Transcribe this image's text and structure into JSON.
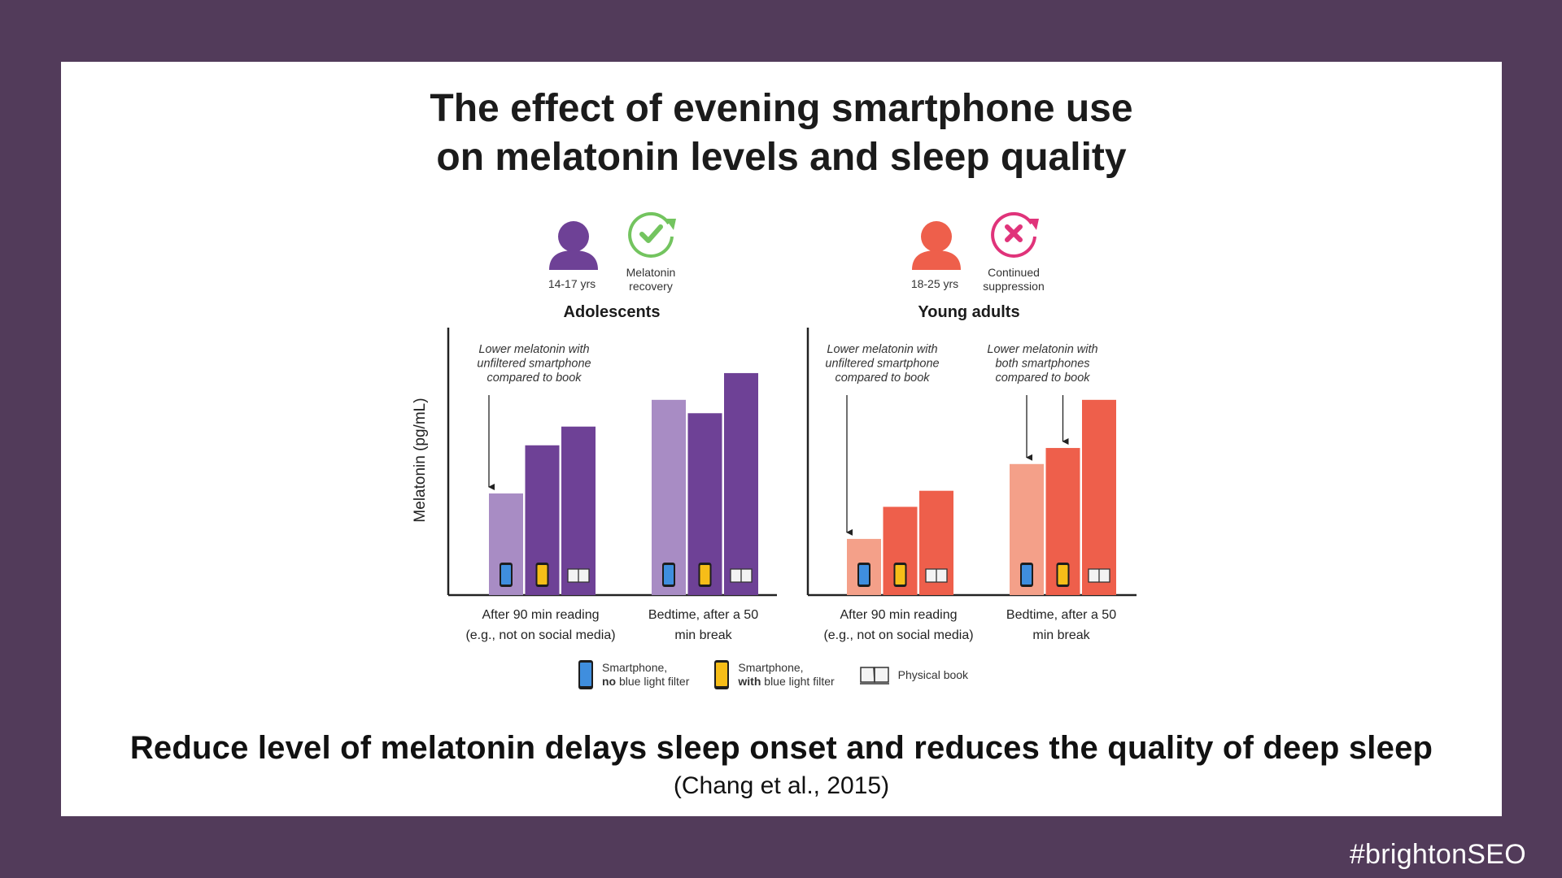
{
  "chart_data": {
    "type": "bar",
    "title_line1": "The effect of evening smartphone use",
    "title_line2": "on melatonin levels and sleep quality",
    "ylabel": "Melatonin (pg/mL)",
    "ylim": [
      0,
      100
    ],
    "panels": [
      {
        "name": "Adolescents",
        "age": "14-17 yrs",
        "status_line1": "Melatonin",
        "status_line2": "recovery",
        "status_type": "recovery",
        "color_dark": "#6e4196",
        "color_light": "#a88cc4",
        "categories": [
          {
            "label_line1": "After 90 min reading",
            "label_line2": "(e.g., not on social media)",
            "values": [
              38,
              56,
              63
            ]
          },
          {
            "label_line1": "Bedtime, after a 50",
            "label_line2": "min break",
            "values": [
              73,
              68,
              83
            ]
          }
        ],
        "annotations": [
          {
            "lines": [
              "Lower melatonin with",
              "unfiltered smartphone",
              "compared to book"
            ],
            "category": 0,
            "targets": [
              0
            ]
          }
        ]
      },
      {
        "name": "Young adults",
        "age": "18-25 yrs",
        "status_line1": "Continued",
        "status_line2": "suppression",
        "status_type": "suppression",
        "color_dark": "#ee5f4b",
        "color_light": "#f4a089",
        "categories": [
          {
            "label_line1": "After 90 min reading",
            "label_line2": "(e.g., not on social media)",
            "values": [
              21,
              33,
              39
            ]
          },
          {
            "label_line1": "Bedtime, after a 50",
            "label_line2": "min break",
            "values": [
              49,
              55,
              73
            ]
          }
        ],
        "annotations": [
          {
            "lines": [
              "Lower melatonin with",
              "unfiltered smartphone",
              "compared to book"
            ],
            "category": 0,
            "targets": [
              0
            ]
          },
          {
            "lines": [
              "Lower melatonin with",
              "both smartphones",
              "compared to book"
            ],
            "category": 1,
            "targets": [
              0,
              1
            ]
          }
        ]
      }
    ],
    "series": [
      {
        "name": "Smartphone, no blue light filter",
        "icon": "phone-blue"
      },
      {
        "name": "Smartphone, with blue light filter",
        "icon": "phone-yellow"
      },
      {
        "name": "Physical book",
        "icon": "book"
      }
    ],
    "colors": {
      "recovery": "#73c45f",
      "suppression": "#e0337a",
      "phone_blue": "#3f8ede",
      "phone_yellow": "#f6bd18"
    }
  },
  "legend": {
    "item1_line1": "Smartphone,",
    "item1_bold": "no",
    "item1_rest": " blue light filter",
    "item2_line1": "Smartphone,",
    "item2_bold": "with",
    "item2_rest": " blue light filter",
    "item3": "Physical book"
  },
  "caption": "Reduce level of melatonin delays sleep onset and reduces the quality of deep sleep",
  "citation": "(Chang et al., 2015)",
  "hashtag": "#brightonSEO"
}
